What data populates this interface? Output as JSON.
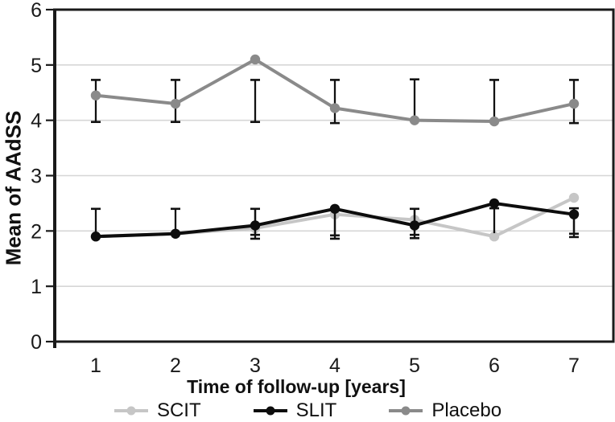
{
  "figure": {
    "background": "#ffffff",
    "axis_color": "#1a1a1a",
    "grid_color": "#d6d6d6",
    "errorbar_color": "#111111",
    "text_color": "#1a1a1a"
  },
  "chart_data": {
    "type": "line",
    "title": "",
    "xlabel": "Time of follow-up [years]",
    "ylabel": "Mean of AAdSS",
    "x": [
      1,
      2,
      3,
      4,
      5,
      6,
      7
    ],
    "ylim": [
      0,
      6
    ],
    "yticks": [
      0,
      1,
      2,
      3,
      4,
      5,
      6
    ],
    "grid": "horizontal-only",
    "legend_position": "bottom",
    "series": [
      {
        "name": "SCIT",
        "color": "#c6c6c6",
        "z": 0,
        "values": [
          1.9,
          1.95,
          2.05,
          2.3,
          2.2,
          1.9,
          2.6
        ],
        "errorbars": [
          {
            "x": 3,
            "lo": 1.86,
            "hi": 2.38,
            "cap_lo": true,
            "cap_hi": false
          },
          {
            "x": 4,
            "lo": 1.86,
            "hi": 2.38,
            "cap_lo": true,
            "cap_hi": false
          },
          {
            "x": 5,
            "lo": 1.87,
            "hi": 2.38,
            "cap_lo": true,
            "cap_hi": false
          },
          {
            "x": 7,
            "lo": 1.89,
            "hi": 2.38,
            "cap_lo": true,
            "cap_hi": false
          }
        ]
      },
      {
        "name": "SLIT",
        "color": "#0d0d0d",
        "z": 2,
        "values": [
          1.9,
          1.95,
          2.1,
          2.4,
          2.1,
          2.5,
          2.3
        ],
        "errorbars": [
          {
            "x": 1,
            "lo": 1.9,
            "hi": 2.4,
            "cap_lo": false,
            "cap_hi": true
          },
          {
            "x": 2,
            "lo": 1.95,
            "hi": 2.4,
            "cap_lo": false,
            "cap_hi": true
          },
          {
            "x": 3,
            "lo": 1.93,
            "hi": 2.4,
            "cap_lo": true,
            "cap_hi": true
          },
          {
            "x": 4,
            "lo": 1.92,
            "hi": 2.4,
            "cap_lo": true,
            "cap_hi": false
          },
          {
            "x": 5,
            "lo": 1.93,
            "hi": 2.4,
            "cap_lo": true,
            "cap_hi": true
          },
          {
            "x": 6,
            "lo": 1.96,
            "hi": 2.41,
            "cap_lo": false,
            "cap_hi": true
          },
          {
            "x": 7,
            "lo": 1.95,
            "hi": 2.41,
            "cap_lo": true,
            "cap_hi": true
          }
        ]
      },
      {
        "name": "Placebo",
        "color": "#8a8a8a",
        "z": 1,
        "values": [
          4.45,
          4.3,
          5.1,
          4.22,
          4.0,
          3.98,
          4.3
        ],
        "errorbars": [
          {
            "x": 1,
            "lo": 3.97,
            "hi": 4.73,
            "cap_lo": true,
            "cap_hi": true
          },
          {
            "x": 2,
            "lo": 3.97,
            "hi": 4.73,
            "cap_lo": true,
            "cap_hi": true
          },
          {
            "x": 3,
            "lo": 3.97,
            "hi": 4.73,
            "cap_lo": true,
            "cap_hi": true
          },
          {
            "x": 4,
            "lo": 3.95,
            "hi": 4.73,
            "cap_lo": true,
            "cap_hi": true
          },
          {
            "x": 5,
            "lo": 4.0,
            "hi": 4.74,
            "cap_lo": false,
            "cap_hi": true
          },
          {
            "x": 6,
            "lo": 3.98,
            "hi": 4.73,
            "cap_lo": false,
            "cap_hi": true
          },
          {
            "x": 7,
            "lo": 3.95,
            "hi": 4.73,
            "cap_lo": true,
            "cap_hi": true
          }
        ]
      }
    ]
  }
}
